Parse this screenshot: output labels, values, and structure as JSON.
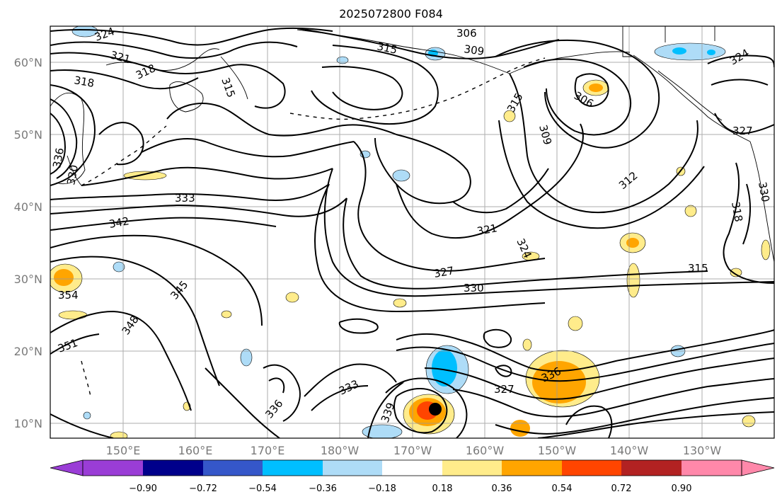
{
  "title": "2025072800 F084",
  "map": {
    "lat_labels": [
      "60°N",
      "50°N",
      "40°N",
      "30°N",
      "20°N",
      "10°N"
    ],
    "lon_labels": [
      "150°E",
      "160°E",
      "170°E",
      "180°W",
      "170°W",
      "160°W",
      "150°W",
      "140°W",
      "130°W"
    ],
    "contour_labels": [
      "324",
      "321",
      "318",
      "318",
      "315",
      "306",
      "309",
      "315",
      "306",
      "309",
      "312",
      "315",
      "324",
      "327",
      "330",
      "330",
      "318",
      "336",
      "333",
      "342",
      "345",
      "348",
      "351",
      "354",
      "321",
      "324",
      "327",
      "330",
      "333",
      "336",
      "339",
      "327",
      "336",
      "315"
    ],
    "storm_marker": "filled-black-circle"
  },
  "colorbar": {
    "ticks": [
      "−0.90",
      "−0.72",
      "−0.54",
      "−0.36",
      "−0.18",
      "0.18",
      "0.36",
      "0.54",
      "0.72",
      "0.90"
    ],
    "colors": [
      "#9a3dd6",
      "#00008b",
      "#3557c9",
      "#00bfff",
      "#aedcf7",
      "#ffffff",
      "#ffec8b",
      "#ffa500",
      "#ff4500",
      "#b22222",
      "#ff88aa"
    ]
  }
}
